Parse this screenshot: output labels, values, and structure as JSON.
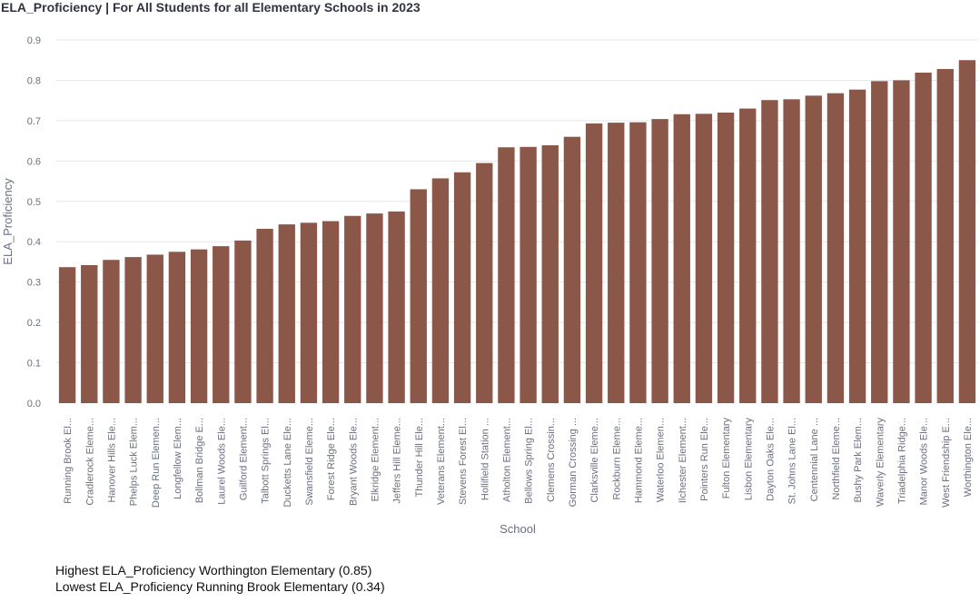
{
  "chart_data": {
    "type": "bar",
    "title": "ELA_Proficiency | For All Students for all Elementary Schools in 2023",
    "xlabel": "School",
    "ylabel": "ELA_Proficiency",
    "ylim": [
      0,
      0.9
    ],
    "yticks": [
      "0.0",
      "0.1",
      "0.2",
      "0.3",
      "0.4",
      "0.5",
      "0.6",
      "0.7",
      "0.8",
      "0.9"
    ],
    "grid": true,
    "bar_color": "#8b5749",
    "categories": [
      "Running Brook El...",
      "Cradlerock Eleme...",
      "Hanover Hills Ele...",
      "Phelps Luck Elem...",
      "Deep Run Elemen...",
      "Longfellow Elem...",
      "Bollman Bridge E...",
      "Laurel Woods Ele...",
      "Guilford Element...",
      "Talbott Springs El...",
      "Ducketts Lane Ele...",
      "Swansfield Eleme...",
      "Forest Ridge Ele...",
      "Bryant Woods Ele...",
      "Elkridge Element...",
      "Jeffers Hill Eleme...",
      "Thunder Hill Ele...",
      "Veterans Element...",
      "Stevens Forest El...",
      "Hollifield Station ...",
      "Atholton Element...",
      "Bellows Spring El...",
      "Clemens Crossin...",
      "Gorman Crossing ...",
      "Clarksville Eleme...",
      "Rockburn Eleme...",
      "Hammond Eleme...",
      "Waterloo Elemen...",
      "Ilchester Element...",
      "Pointers Run Ele...",
      "Fulton Elementary",
      "Lisbon Elementary",
      "Dayton Oaks Ele...",
      "St. Johns Lane El...",
      "Centennial Lane ...",
      "Northfield Eleme...",
      "Bushy Park Elem...",
      "Waverly Elementary",
      "Triadelphia Ridge...",
      "Manor Woods Ele...",
      "West Friendship E...",
      "Worthington Ele..."
    ],
    "values": [
      0.337,
      0.342,
      0.355,
      0.362,
      0.368,
      0.375,
      0.381,
      0.389,
      0.403,
      0.432,
      0.443,
      0.447,
      0.451,
      0.464,
      0.47,
      0.475,
      0.53,
      0.557,
      0.572,
      0.595,
      0.634,
      0.635,
      0.639,
      0.66,
      0.693,
      0.695,
      0.696,
      0.704,
      0.716,
      0.717,
      0.72,
      0.73,
      0.751,
      0.753,
      0.762,
      0.768,
      0.777,
      0.798,
      0.8,
      0.819,
      0.828,
      0.85
    ]
  },
  "summary": {
    "highest": "Highest ELA_Proficiency Worthington Elementary (0.85)",
    "lowest": "Lowest ELA_Proficiency Running Brook Elementary (0.34)"
  }
}
